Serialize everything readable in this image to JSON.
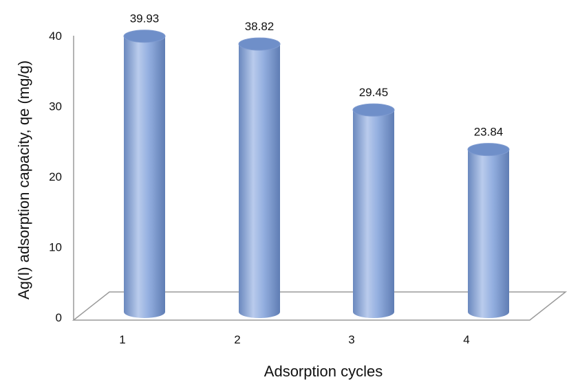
{
  "chart_data": {
    "type": "bar",
    "style": "3d-cylinder",
    "categories": [
      "1",
      "2",
      "3",
      "4"
    ],
    "series": [
      {
        "values": [
          39.93,
          38.82,
          29.45,
          23.84
        ]
      }
    ],
    "data_labels": [
      "39.93",
      "38.82",
      "29.45",
      "23.84"
    ],
    "title": "",
    "xlabel": "Adsorption cycles",
    "ylabel": "Ag(I) adsorption capacity, qe (mg/g)",
    "ylim": [
      0,
      40
    ],
    "yticks": [
      "0",
      "10",
      "20",
      "30",
      "40"
    ],
    "grid": false,
    "legend": "none",
    "colors": {
      "bar_fill": "#8ea9db",
      "bar_highlight": "#c5d5f0",
      "bar_shadow": "#5f7fb5",
      "bar_top": "#6f8fc9",
      "axis": "#8a8a8a"
    }
  }
}
